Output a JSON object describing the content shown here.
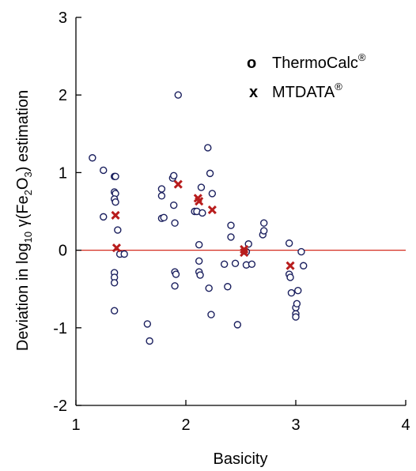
{
  "chart_data": {
    "type": "scatter",
    "xlabel": "Basicity",
    "ylabel": {
      "prefix": "Deviation in log",
      "log_sub": "10",
      "gamma": " γ(Fe",
      "fe_sub": "2",
      "mid": "O",
      "o_sub": "3",
      "suffix": ") estimation"
    },
    "xlim": [
      1,
      4
    ],
    "ylim": [
      -2,
      3
    ],
    "xticks": [
      1,
      2,
      3,
      4
    ],
    "yticks": [
      -2,
      -1,
      0,
      1,
      2,
      3
    ],
    "legend_position": "top-right",
    "reference_line": {
      "y": 0,
      "color": "#d42a1e"
    },
    "series": [
      {
        "name": "ThermoCalc",
        "legend_marker": "o",
        "legend_sup": "®",
        "marker": "circle",
        "color": "#1a1f5e",
        "points": [
          [
            1.15,
            1.19
          ],
          [
            1.25,
            1.03
          ],
          [
            1.25,
            0.43
          ],
          [
            1.35,
            0.95
          ],
          [
            1.36,
            0.95
          ],
          [
            1.35,
            0.75
          ],
          [
            1.36,
            0.73
          ],
          [
            1.35,
            0.66
          ],
          [
            1.36,
            0.62
          ],
          [
            1.38,
            0.26
          ],
          [
            1.4,
            -0.05
          ],
          [
            1.44,
            -0.05
          ],
          [
            1.35,
            -0.29
          ],
          [
            1.35,
            -0.35
          ],
          [
            1.35,
            -0.42
          ],
          [
            1.35,
            -0.78
          ],
          [
            1.65,
            -0.95
          ],
          [
            1.67,
            -1.17
          ],
          [
            1.78,
            0.79
          ],
          [
            1.78,
            0.7
          ],
          [
            1.78,
            0.41
          ],
          [
            1.8,
            0.42
          ],
          [
            1.88,
            0.93
          ],
          [
            1.89,
            0.96
          ],
          [
            1.89,
            0.58
          ],
          [
            1.9,
            0.35
          ],
          [
            1.9,
            -0.28
          ],
          [
            1.91,
            -0.31
          ],
          [
            1.9,
            -0.46
          ],
          [
            1.93,
            2.0
          ],
          [
            2.08,
            0.5
          ],
          [
            2.1,
            0.5
          ],
          [
            2.12,
            0.07
          ],
          [
            2.12,
            -0.14
          ],
          [
            2.12,
            -0.28
          ],
          [
            2.13,
            -0.32
          ],
          [
            2.14,
            0.81
          ],
          [
            2.15,
            0.48
          ],
          [
            2.2,
            1.32
          ],
          [
            2.21,
            -0.49
          ],
          [
            2.22,
            0.99
          ],
          [
            2.24,
            0.73
          ],
          [
            2.23,
            -0.83
          ],
          [
            2.35,
            -0.18
          ],
          [
            2.38,
            -0.47
          ],
          [
            2.41,
            0.32
          ],
          [
            2.41,
            0.17
          ],
          [
            2.45,
            -0.17
          ],
          [
            2.47,
            -0.96
          ],
          [
            2.55,
            -0.02
          ],
          [
            2.57,
            0.08
          ],
          [
            2.55,
            -0.19
          ],
          [
            2.6,
            -0.18
          ],
          [
            2.7,
            0.2
          ],
          [
            2.71,
            0.35
          ],
          [
            2.71,
            0.25
          ],
          [
            2.94,
            0.09
          ],
          [
            2.94,
            -0.31
          ],
          [
            2.95,
            -0.35
          ],
          [
            2.96,
            -0.55
          ],
          [
            3.0,
            -0.74
          ],
          [
            3.01,
            -0.69
          ],
          [
            3.0,
            -0.82
          ],
          [
            3.0,
            -0.86
          ],
          [
            3.02,
            -0.52
          ],
          [
            3.05,
            -0.02
          ],
          [
            3.07,
            -0.2
          ]
        ]
      },
      {
        "name": "MTDATA",
        "legend_marker": "x",
        "legend_sup": "®",
        "marker": "x",
        "color": "#b81d1d",
        "points": [
          [
            1.36,
            0.45
          ],
          [
            1.37,
            0.03
          ],
          [
            1.93,
            0.85
          ],
          [
            2.11,
            0.67
          ],
          [
            2.12,
            0.63
          ],
          [
            2.24,
            0.52
          ],
          [
            2.53,
            0.01
          ],
          [
            2.53,
            -0.03
          ],
          [
            2.95,
            -0.2
          ]
        ]
      }
    ]
  }
}
